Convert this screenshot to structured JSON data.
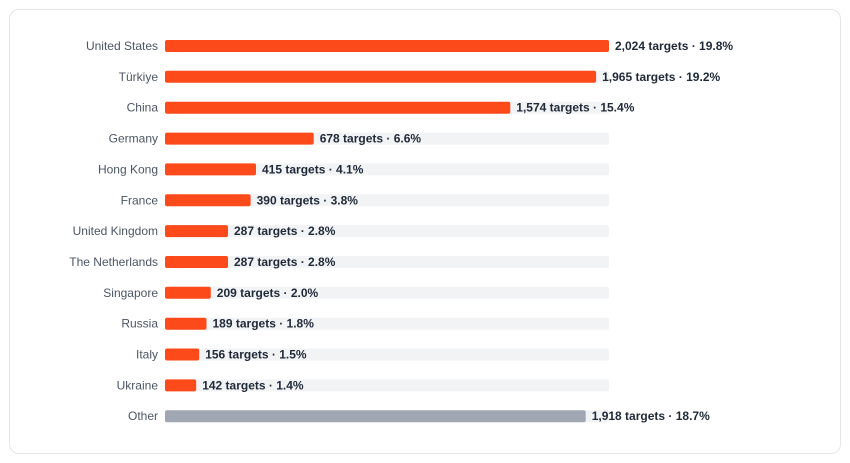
{
  "chart_data": {
    "type": "bar",
    "orientation": "horizontal",
    "categories": [
      "United States",
      "Türkiye",
      "China",
      "Germany",
      "Hong Kong",
      "France",
      "United Kingdom",
      "The Netherlands",
      "Singapore",
      "Russia",
      "Italy",
      "Ukraine",
      "Other"
    ],
    "values": [
      2024,
      1965,
      1574,
      678,
      415,
      390,
      287,
      287,
      209,
      189,
      156,
      142,
      1918
    ],
    "labels": [
      "2,024 targets · 19.8%",
      "1,965 targets · 19.2%",
      "1,574 targets · 15.4%",
      "678 targets · 6.6%",
      "415 targets · 4.1%",
      "390 targets · 3.8%",
      "287 targets · 2.8%",
      "287 targets · 2.8%",
      "209 targets · 2.0%",
      "189 targets · 1.8%",
      "156 targets · 1.5%",
      "142 targets · 1.4%",
      "1,918 targets · 18.7%"
    ],
    "max_value": 2024,
    "grid": false,
    "legend": "none",
    "colors": {
      "bar": "#fc4a1a",
      "other": "#a0a7b2",
      "track": "#f2f3f5"
    }
  }
}
